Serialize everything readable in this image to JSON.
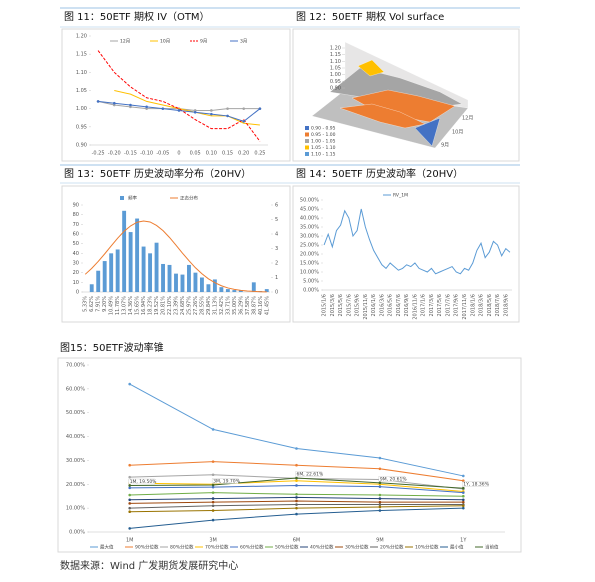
{
  "chart_data": [
    {
      "type": "line",
      "title": "图 11：50ETF 期权 IV（OTM）",
      "categories": [
        "-0.25",
        "-0.20",
        "-0.15",
        "-0.10",
        "-0.05",
        "0",
        "0.05",
        "0.10",
        "0.15",
        "0.20",
        "0.25"
      ],
      "ylim": [
        0.9,
        1.2
      ],
      "yticks": [
        {
          "value": 0.9,
          "label": "0.90"
        },
        {
          "value": 0.95,
          "label": "0.95"
        },
        {
          "value": 1.0,
          "label": "1.00"
        },
        {
          "value": 1.05,
          "label": "1.05"
        },
        {
          "value": 1.1,
          "label": "1.10"
        },
        {
          "value": 1.15,
          "label": "1.15"
        },
        {
          "value": 1.2,
          "label": "1.20"
        }
      ],
      "grid": false,
      "series": [
        {
          "name": "12月",
          "color": "#a5a5a5",
          "marker": true,
          "values": [
            1.02,
            1.01,
            1.005,
            1.0,
            1.0,
            1.0,
            0.995,
            0.995,
            1.0,
            1.0,
            1.0
          ]
        },
        {
          "name": "10月",
          "color": "#ffc000",
          "marker": false,
          "values": [
            null,
            1.05,
            1.04,
            1.02,
            1.01,
            1.0,
            0.99,
            0.98,
            0.98,
            0.96,
            0.955
          ]
        },
        {
          "name": "9月",
          "color": "#ff0000",
          "dash": true,
          "marker": false,
          "values": [
            1.16,
            1.1,
            1.06,
            1.03,
            1.02,
            1.0,
            0.97,
            0.945,
            0.945,
            0.97,
            0.91
          ]
        },
        {
          "name": "3月",
          "color": "#4472c4",
          "marker": true,
          "values": [
            1.02,
            1.015,
            1.01,
            1.005,
            1.0,
            0.995,
            0.99,
            0.985,
            0.98,
            0.965,
            1.0
          ]
        }
      ]
    },
    {
      "type": "surface",
      "title": "图 12：50ETF 期权 Vol surface",
      "zticks": [
        {
          "value": 1.2,
          "label": "1.20"
        },
        {
          "value": 1.15,
          "label": "1.15"
        },
        {
          "value": 1.1,
          "label": "1.10"
        },
        {
          "value": 1.05,
          "label": "1.05"
        },
        {
          "value": 1.0,
          "label": "1.00"
        },
        {
          "value": 0.95,
          "label": "0.95"
        },
        {
          "value": 0.9,
          "label": "0.90"
        }
      ],
      "depth_categories": [
        "12月",
        "10月",
        "9月"
      ],
      "series": [
        {
          "name": "0.90 - 0.95",
          "color": "#4472c4"
        },
        {
          "name": "0.95 - 1.00",
          "color": "#ed7d31"
        },
        {
          "name": "1.00 - 1.05",
          "color": "#a5a5a5"
        },
        {
          "name": "1.05 - 1.10",
          "color": "#ffc000"
        },
        {
          "name": "1.10 - 1.15",
          "color": "#5b9bd5"
        }
      ]
    },
    {
      "type": "bar",
      "title": "图 13：50ETF 历史波动率分布（20HV）",
      "categories": [
        "5.33%",
        "6.62%",
        "7.91%",
        "9.20%",
        "10.49%",
        "11.78%",
        "13.07%",
        "14.36%",
        "15.65%",
        "16.94%",
        "18.23%",
        "19.52%",
        "20.81%",
        "22.10%",
        "23.39%",
        "24.68%",
        "25.97%",
        "27.26%",
        "28.55%",
        "29.84%",
        "31.13%",
        "32.42%",
        "33.71%",
        "35.00%",
        "36.29%",
        "37.58%",
        "38.87%",
        "40.16%",
        "41.45%"
      ],
      "ylim": [
        0,
        90
      ],
      "yticks": [
        0,
        10,
        20,
        30,
        40,
        50,
        60,
        70,
        80,
        90
      ],
      "y2lim": [
        0,
        6
      ],
      "y2ticks": [
        0,
        1,
        2,
        3,
        4,
        5,
        6
      ],
      "series": [
        {
          "name": "频率",
          "color": "#5b9bd5",
          "values": [
            0,
            8,
            22,
            32,
            40,
            44,
            84,
            62,
            76,
            47,
            40,
            51,
            29,
            28,
            19,
            18,
            28,
            20,
            15,
            8,
            13,
            5,
            3,
            2,
            2,
            0,
            10,
            1,
            3
          ]
        },
        {
          "name": "正态分布",
          "color": "#ed7d31",
          "type": "line",
          "axis": "y2",
          "values": [
            1.22,
            1.63,
            2.11,
            2.63,
            3.18,
            3.71,
            4.19,
            4.56,
            4.81,
            4.9,
            4.83,
            4.59,
            4.23,
            3.76,
            3.23,
            2.68,
            2.16,
            1.67,
            1.26,
            0.91,
            0.64,
            0.43,
            0.28,
            0.18,
            0.11,
            0.07,
            0.04,
            0.02,
            0.01
          ]
        }
      ]
    },
    {
      "type": "line",
      "title": "图 14：50ETF 历史波动率（20HV）",
      "categories": [
        "2015/1/6",
        null,
        "2015/3/6",
        null,
        "2015/5/6",
        null,
        "2015/7/6",
        null,
        "2015/9/6",
        null,
        "2015/11/6",
        null,
        "2016/1/6",
        null,
        "2016/3/6",
        null,
        "2016/5/6",
        null,
        "2016/7/6",
        null,
        "2016/9/6",
        null,
        "2016/11/6",
        null,
        "2017/1/6",
        null,
        "2017/3/6",
        null,
        "2017/5/6",
        null,
        "2017/7/6",
        null,
        "2017/9/6",
        null,
        "2017/11/6",
        null,
        "2018/1/6",
        null,
        "2018/3/6",
        null,
        "2018/5/6",
        null,
        "2018/7/6",
        null,
        "2018/9/6",
        null
      ],
      "ylim": [
        0,
        50
      ],
      "yticks": [
        {
          "value": 0,
          "label": "0.00%"
        },
        {
          "value": 5,
          "label": "5.00%"
        },
        {
          "value": 10,
          "label": "10.00%"
        },
        {
          "value": 15,
          "label": "15.00%"
        },
        {
          "value": 20,
          "label": "20.00%"
        },
        {
          "value": 25,
          "label": "25.00%"
        },
        {
          "value": 30,
          "label": "30.00%"
        },
        {
          "value": 35,
          "label": "35.00%"
        },
        {
          "value": 40,
          "label": "40.00%"
        },
        {
          "value": 45,
          "label": "45.00%"
        },
        {
          "value": 50,
          "label": "50.00%"
        }
      ],
      "grid": false,
      "series": [
        {
          "name": "RV_1M",
          "color": "#5b9bd5",
          "marker": false,
          "values": [
            25,
            31,
            24,
            33,
            36,
            44,
            40,
            30,
            33,
            45,
            35,
            28,
            22,
            18,
            14,
            12,
            15,
            13,
            11,
            12,
            14,
            13,
            15,
            12,
            11,
            10,
            12,
            9,
            10,
            11,
            12,
            13,
            10,
            9,
            12,
            11,
            15,
            22,
            26,
            18,
            21,
            27,
            25,
            19,
            23,
            21
          ]
        }
      ]
    },
    {
      "type": "line",
      "title": "图15：50ETF波动率锥",
      "categories": [
        "1M",
        "3M",
        "6M",
        "9M",
        "1Y"
      ],
      "ylim": [
        0,
        70
      ],
      "yticks": [
        {
          "value": 0,
          "label": "0.00%"
        },
        {
          "value": 10,
          "label": "10.00%"
        },
        {
          "value": 20,
          "label": "20.00%"
        },
        {
          "value": 30,
          "label": "30.00%"
        },
        {
          "value": 40,
          "label": "40.00%"
        },
        {
          "value": 50,
          "label": "50.00%"
        },
        {
          "value": 60,
          "label": "60.00%"
        },
        {
          "value": 70,
          "label": "70.00%"
        }
      ],
      "grid": false,
      "series": [
        {
          "name": "最大值",
          "color": "#5b9bd5",
          "marker": true,
          "values": [
            62,
            43,
            35,
            31,
            23.5
          ]
        },
        {
          "name": "90%分位数",
          "color": "#ed7d31",
          "marker": true,
          "values": [
            28,
            29.5,
            28,
            26.5,
            21.5
          ]
        },
        {
          "name": "80%分位数",
          "color": "#a5a5a5",
          "marker": true,
          "values": [
            23,
            24,
            22.5,
            22,
            18
          ]
        },
        {
          "name": "70%分位数",
          "color": "#ffc000",
          "marker": true,
          "values": [
            20.5,
            20,
            21.5,
            20,
            17
          ]
        },
        {
          "name": "60%分位数",
          "color": "#4472c4",
          "marker": true,
          "values": [
            18.5,
            18.8,
            19.5,
            19,
            16.5
          ]
        },
        {
          "name": "50%分位数",
          "color": "#70ad47",
          "marker": true,
          "values": [
            15.5,
            16.5,
            15.8,
            15.5,
            15
          ]
        },
        {
          "name": "40%分位数",
          "color": "#264478",
          "marker": true,
          "values": [
            13.5,
            14,
            14.5,
            14,
            13.5
          ]
        },
        {
          "name": "30%分位数",
          "color": "#9e480e",
          "marker": true,
          "values": [
            12,
            12.5,
            13,
            12.5,
            12.5
          ]
        },
        {
          "name": "20%分位数",
          "color": "#636363",
          "marker": true,
          "values": [
            10,
            11,
            11.5,
            11.5,
            11.5
          ]
        },
        {
          "name": "10%分位数",
          "color": "#997300",
          "marker": true,
          "values": [
            8.5,
            9,
            10,
            10.5,
            11
          ]
        },
        {
          "name": "最小值",
          "color": "#255e91",
          "marker": true,
          "values": [
            1.5,
            5,
            7.5,
            9,
            10
          ]
        },
        {
          "name": "当前值",
          "color": "#43682b",
          "marker": true,
          "values": [
            19.5,
            19.7,
            22.61,
            20.61,
            18.36
          ],
          "value_labels": [
            "1M, 19.50%",
            "3M, 19.70%",
            "6M, 22.61%",
            "9M, 20.61%",
            "1Y, 18.36%"
          ]
        }
      ]
    }
  ],
  "source": "数据来源：Wind 广发期货发展研究中心"
}
